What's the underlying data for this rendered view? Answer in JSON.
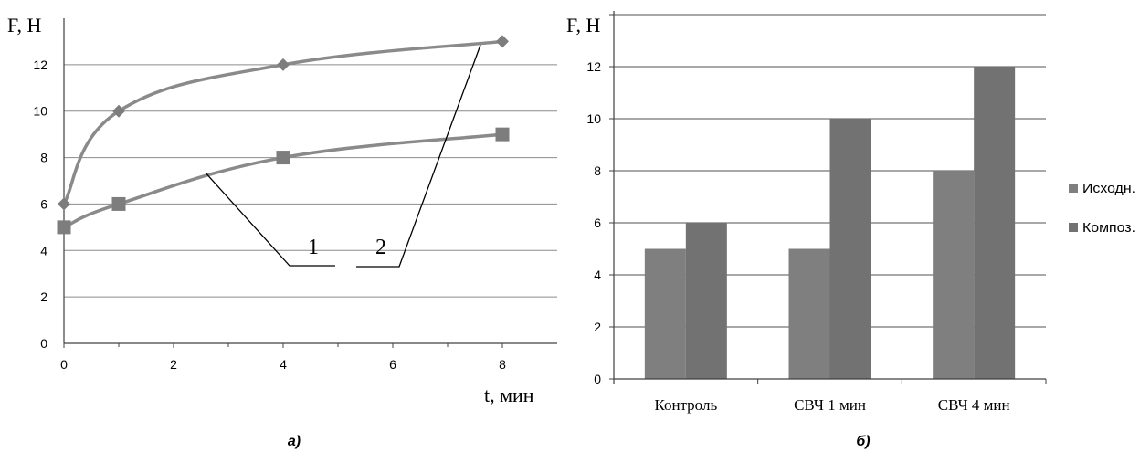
{
  "chart_data": [
    {
      "type": "line",
      "ylabel": "F, Н",
      "xlabel": "t, мин",
      "caption": "а)",
      "xlim": [
        0,
        9
      ],
      "ylim": [
        0,
        14
      ],
      "xticks": [
        0,
        2,
        4,
        6,
        8
      ],
      "yticks": [
        0,
        2,
        4,
        6,
        8,
        10,
        12
      ],
      "grid": "horizontal",
      "series": [
        {
          "name": "2",
          "x": [
            0,
            1,
            4,
            8
          ],
          "y": [
            6,
            10,
            12,
            13
          ],
          "marker": "diamond"
        },
        {
          "name": "1",
          "x": [
            0,
            1,
            4,
            8
          ],
          "y": [
            5,
            6,
            8,
            9
          ],
          "marker": "square"
        }
      ],
      "curve_labels": [
        "1",
        "2"
      ]
    },
    {
      "type": "bar",
      "ylabel": "F, Н",
      "caption": "б)",
      "ylim": [
        0,
        14
      ],
      "yticks": [
        0,
        2,
        4,
        6,
        8,
        10,
        12
      ],
      "grid": "horizontal",
      "legend_position": "right",
      "categories": [
        "Контроль",
        "СВЧ 1 мин",
        "СВЧ 4 мин"
      ],
      "series": [
        {
          "name": "Исходн.",
          "values": [
            5,
            5,
            8
          ]
        },
        {
          "name": "Композ.",
          "values": [
            6,
            10,
            12
          ]
        }
      ]
    }
  ],
  "colors": {
    "line_series": "#8a8a8a",
    "marker_fill": "#7d7d7d",
    "bar_series_1": "#7f7f7f",
    "bar_series_2": "#727272",
    "grid": "#8c8c8c",
    "axis": "#404040",
    "text": "#000000"
  }
}
